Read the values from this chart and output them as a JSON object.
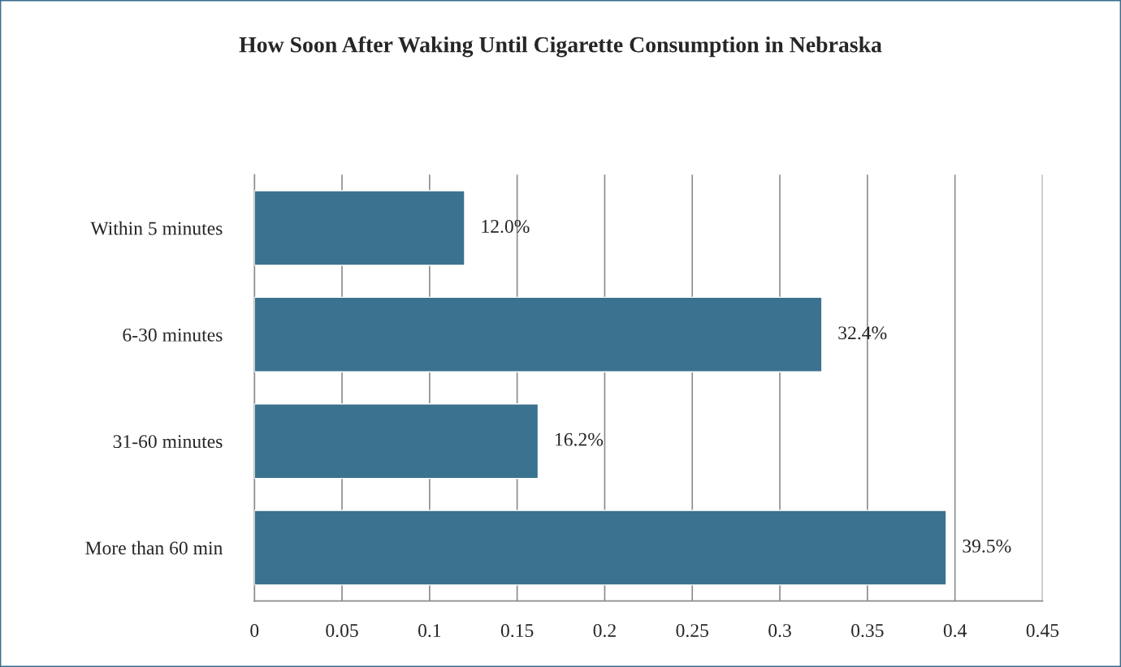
{
  "chart_data": {
    "type": "bar",
    "orientation": "horizontal",
    "title": "How Soon After Waking Until Cigarette Consumption in Nebraska",
    "categories": [
      "Within 5 minutes",
      "6-30 minutes",
      "31-60 minutes",
      "More than 60 min"
    ],
    "values": [
      0.12,
      0.324,
      0.162,
      0.395
    ],
    "value_labels": [
      "12.0%",
      "32.4%",
      "16.2%",
      "39.5%"
    ],
    "color": "#3a728f",
    "xlim": [
      0,
      0.45
    ],
    "xticks": [
      0,
      0.05,
      0.1,
      0.15,
      0.2,
      0.25,
      0.3,
      0.35,
      0.4,
      0.45
    ],
    "grid": "x",
    "legend": false
  }
}
